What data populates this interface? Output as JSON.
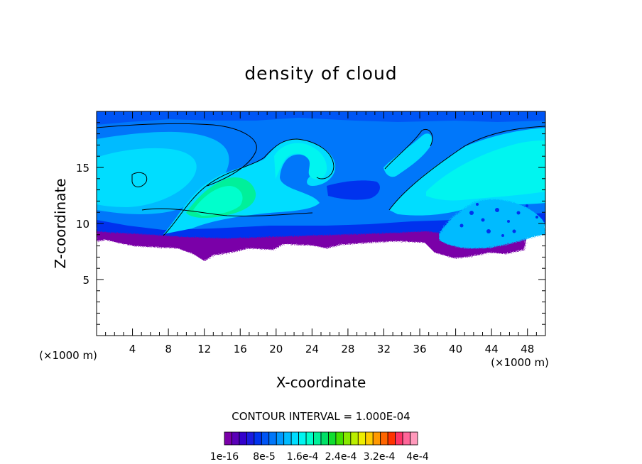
{
  "chart_data": {
    "type": "contour",
    "title": "density of cloud",
    "xlabel": "X-coordinate",
    "ylabel": "Z-coordinate",
    "x_unit_left": "(×1000 m)",
    "x_unit_right": "(×1000 m)",
    "xlim": [
      0,
      50
    ],
    "ylim": [
      0,
      20
    ],
    "x_ticks": [
      4,
      8,
      12,
      16,
      20,
      24,
      28,
      32,
      36,
      40,
      44,
      48
    ],
    "y_ticks": [
      5,
      10,
      15
    ],
    "contour_interval_label": "CONTOUR INTERVAL = 1.000E-04",
    "colorbar": {
      "colors": [
        "#7a00a8",
        "#5a00b8",
        "#3300cc",
        "#1a1adf",
        "#0033ee",
        "#0055f5",
        "#0077fa",
        "#0099ff",
        "#00bbff",
        "#00ddff",
        "#00f5f0",
        "#00ffcc",
        "#00f09a",
        "#00e066",
        "#10dd30",
        "#44e000",
        "#88e800",
        "#bbee00",
        "#eeee00",
        "#ffcc00",
        "#ff9900",
        "#ff6600",
        "#ff3300",
        "#ff3366",
        "#ff6699",
        "#ff99bb"
      ],
      "labels": [
        "1e-16",
        "8e-5",
        "1.6e-4",
        "2.4e-4",
        "3.2e-4",
        "4e-4"
      ]
    },
    "cloud_base_km": 8.5,
    "cloud_top_km": 19.5
  }
}
